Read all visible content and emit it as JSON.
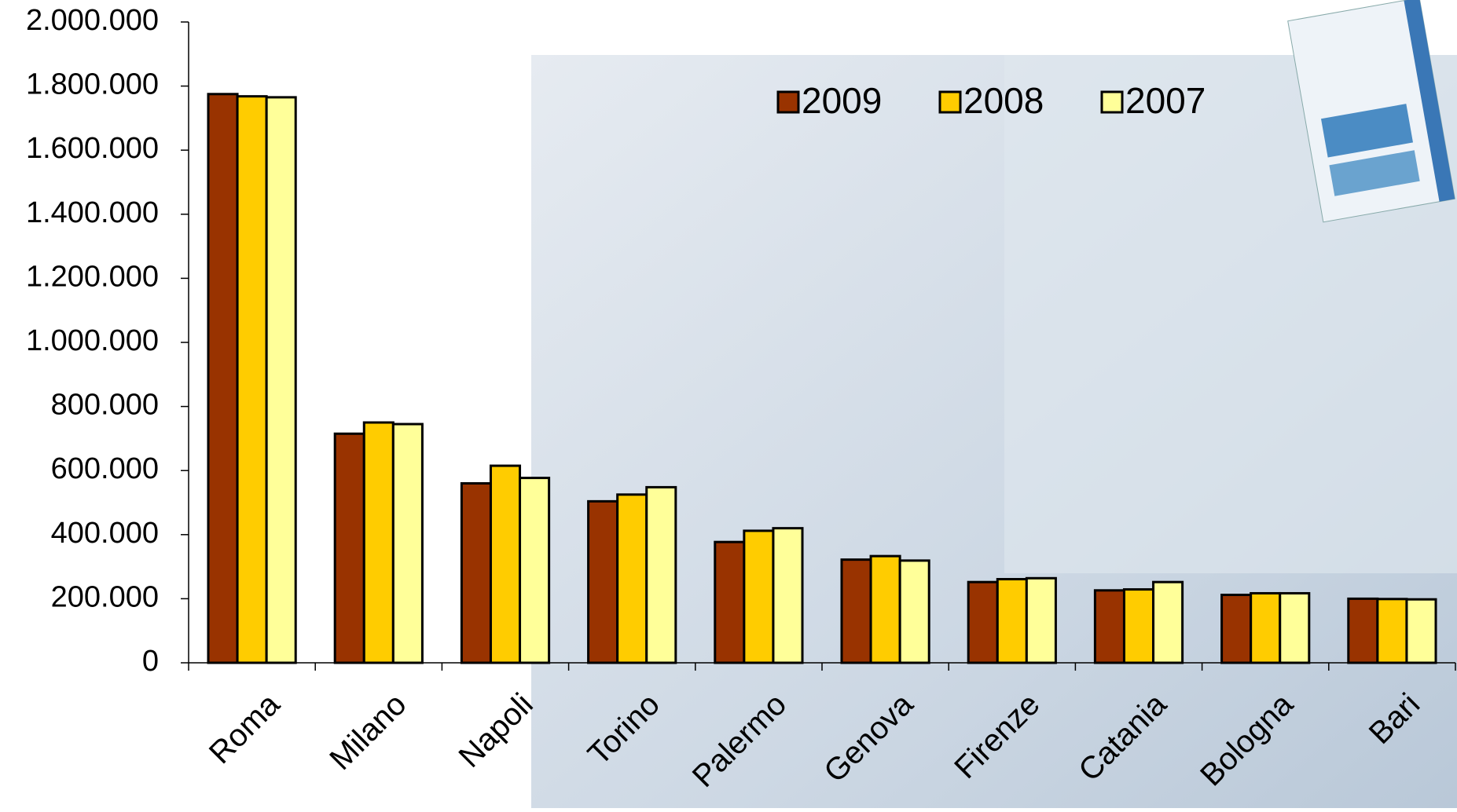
{
  "chart_data": {
    "type": "bar",
    "categories": [
      "Roma",
      "Milano",
      "Napoli",
      "Torino",
      "Palermo",
      "Genova",
      "Firenze",
      "Catania",
      "Bologna",
      "Bari"
    ],
    "series": [
      {
        "name": "2009",
        "color": "#993300",
        "values": [
          1775000,
          715000,
          560000,
          504000,
          377000,
          322000,
          252000,
          226000,
          212000,
          200000
        ]
      },
      {
        "name": "2008",
        "color": "#ffcc00",
        "values": [
          1768000,
          750000,
          615000,
          525000,
          412000,
          333000,
          261000,
          229000,
          217000,
          199000
        ]
      },
      {
        "name": "2007",
        "color": "#ffff99",
        "values": [
          1765000,
          745000,
          577000,
          548000,
          420000,
          319000,
          264000,
          252000,
          217000,
          198000
        ]
      }
    ],
    "ylim": [
      0,
      2000000
    ],
    "yticks": [
      0,
      {
        "value": 200000,
        "label": "200.000"
      },
      {
        "value": 400000,
        "label": "400.000"
      },
      {
        "value": 600000,
        "label": "600.000"
      },
      {
        "value": 800000,
        "label": "800.000"
      },
      {
        "value": 1000000,
        "label": "1.000.000"
      },
      {
        "value": 1200000,
        "label": "1.200.000"
      },
      {
        "value": 1400000,
        "label": "1.400.000"
      },
      {
        "value": 1600000,
        "label": "1.600.000"
      },
      {
        "value": 1800000,
        "label": "1.800.000"
      },
      {
        "value": 2000000,
        "label": "2.000.000"
      }
    ],
    "legend": "top-right",
    "grid": false
  }
}
